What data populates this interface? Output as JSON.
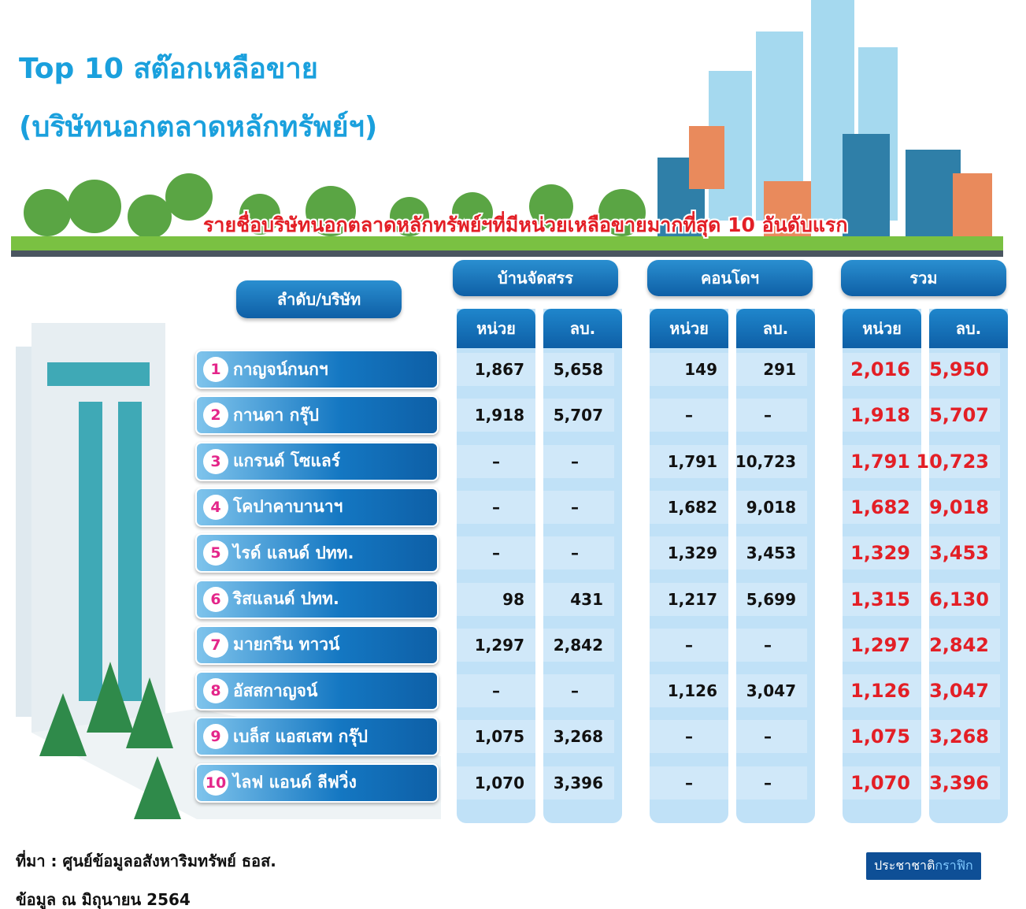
{
  "header": {
    "title": "Top 10 สต๊อกเหลือขาย",
    "subtitle": "(บริษัทนอกตลาดหลักทรัพย์ฯ)",
    "banner": "รายชื่อบริษัทนอกตลาดหลักทรัพย์ฯที่มีหน่วยเหลือขายมากที่สุด 10 อันดับแรก"
  },
  "table": {
    "rank_header": "ลำดับ/บริษัท",
    "groups": [
      "บ้านจัดสรร",
      "คอนโดฯ",
      "รวม"
    ],
    "subheaders": [
      "หน่วย",
      "ลบ.",
      "หน่วย",
      "ลบ.",
      "หน่วย",
      "ลบ."
    ],
    "rows": [
      {
        "rank": 1,
        "name": "กาญจน์กนกฯ",
        "cells": [
          "1,867",
          "5,658",
          "149",
          "291",
          "2,016",
          "5,950"
        ]
      },
      {
        "rank": 2,
        "name": "กานดา กรุ๊ป",
        "cells": [
          "1,918",
          "5,707",
          "–",
          "–",
          "1,918",
          "5,707"
        ]
      },
      {
        "rank": 3,
        "name": "แกรนด์ โซแลร์",
        "cells": [
          "–",
          "–",
          "1,791",
          "10,723",
          "1,791",
          "10,723"
        ]
      },
      {
        "rank": 4,
        "name": "โคปาคาบานาฯ",
        "cells": [
          "–",
          "–",
          "1,682",
          "9,018",
          "1,682",
          "9,018"
        ]
      },
      {
        "rank": 5,
        "name": "ไรด์ แลนด์ ปทท.",
        "cells": [
          "–",
          "–",
          "1,329",
          "3,453",
          "1,329",
          "3,453"
        ]
      },
      {
        "rank": 6,
        "name": "ริสแลนด์ ปทท.",
        "cells": [
          "98",
          "431",
          "1,217",
          "5,699",
          "1,315",
          "6,130"
        ]
      },
      {
        "rank": 7,
        "name": "มายกรีน ทาวน์",
        "cells": [
          "1,297",
          "2,842",
          "–",
          "–",
          "1,297",
          "2,842"
        ]
      },
      {
        "rank": 8,
        "name": "อัสสกาญจน์",
        "cells": [
          "–",
          "–",
          "1,126",
          "3,047",
          "1,126",
          "3,047"
        ]
      },
      {
        "rank": 9,
        "name": "เบล็ส แอสเสท กรุ๊ป",
        "cells": [
          "1,075",
          "3,268",
          "–",
          "–",
          "1,075",
          "3,268"
        ]
      },
      {
        "rank": 10,
        "name": "ไลฟ แอนด์ ลีฟวิ่ง",
        "cells": [
          "1,070",
          "3,396",
          "–",
          "–",
          "1,070",
          "3,396"
        ]
      }
    ]
  },
  "footer": {
    "source": "ที่มา : ศูนย์ข้อมูลอสังหาริมทรัพย์ ธอส.",
    "as_of": "ข้อมูล ณ มิถุนายน 2564",
    "brand": "ประชาชาติ",
    "brand_suffix": "กราฟิก"
  }
}
